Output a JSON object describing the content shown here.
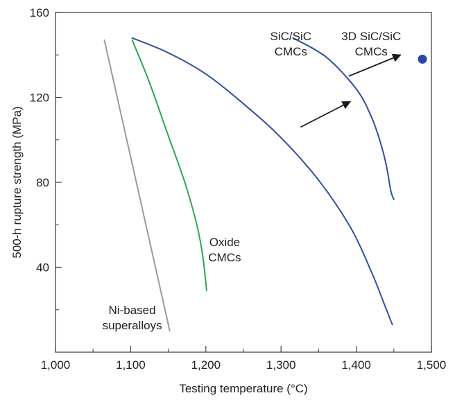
{
  "chart_data": {
    "type": "line",
    "title": "",
    "xlabel": "Testing temperature (°C)",
    "ylabel": "500-h rupture strength (MPa)",
    "xlim": [
      1000,
      1500
    ],
    "ylim": [
      0,
      160
    ],
    "x_ticks": [
      {
        "value": 1000,
        "label": "1,000"
      },
      {
        "value": 1100,
        "label": "1,100"
      },
      {
        "value": 1200,
        "label": "1,200"
      },
      {
        "value": 1300,
        "label": "1,300"
      },
      {
        "value": 1400,
        "label": "1,400"
      },
      {
        "value": 1500,
        "label": "1,500"
      }
    ],
    "x_minor_ticks": [
      1050,
      1150,
      1250,
      1350,
      1450
    ],
    "y_ticks": [
      {
        "value": 40,
        "label": "40"
      },
      {
        "value": 80,
        "label": "80"
      },
      {
        "value": 120,
        "label": "120"
      },
      {
        "value": 160,
        "label": "160"
      }
    ],
    "y_minor_ticks": [
      20,
      60,
      100,
      140
    ],
    "grid": false,
    "legend": "none",
    "series": [
      {
        "color": "#9a9a9a",
        "points": [
          [
            1065,
            147
          ],
          [
            1152,
            10
          ]
        ]
      },
      {
        "color": "#2aa84a",
        "points": [
          [
            1102,
            147
          ],
          [
            1125,
            127
          ],
          [
            1150,
            102
          ],
          [
            1172,
            80
          ],
          [
            1188,
            60
          ],
          [
            1196,
            45
          ],
          [
            1201,
            29
          ]
        ]
      },
      {
        "color": "#2f4fa0",
        "points": [
          [
            1102,
            148
          ],
          [
            1150,
            141
          ],
          [
            1200,
            131
          ],
          [
            1250,
            117
          ],
          [
            1300,
            101
          ],
          [
            1350,
            81
          ],
          [
            1392,
            59
          ],
          [
            1420,
            38
          ],
          [
            1438,
            22
          ],
          [
            1448,
            13
          ]
        ]
      },
      {
        "color": "#2f4fa0",
        "points": [
          [
            1316,
            148
          ],
          [
            1360,
            139
          ],
          [
            1400,
            124
          ],
          [
            1420,
            111
          ],
          [
            1432,
            99
          ],
          [
            1440,
            88
          ],
          [
            1446,
            76
          ],
          [
            1450,
            72
          ]
        ]
      }
    ],
    "points": [
      {
        "x": 1488,
        "y": 138,
        "color": "#2a47a8"
      }
    ],
    "arrows": [
      {
        "from": [
          1326,
          106
        ],
        "to": [
          1392,
          118
        ]
      },
      {
        "from": [
          1390,
          130
        ],
        "to": [
          1459,
          140
        ]
      }
    ],
    "annotations": [
      {
        "name": "ni-superalloys",
        "lines": [
          "Ni-based",
          "superalloys"
        ],
        "x": 1102,
        "y": 18
      },
      {
        "name": "oxide-cmcs",
        "lines": [
          "Oxide",
          "CMCs"
        ],
        "x": 1225,
        "y": 50
      },
      {
        "name": "sic-sic-cmcs",
        "lines": [
          "SiC/SiC",
          "CMCs"
        ],
        "x": 1313,
        "y": 147
      },
      {
        "name": "3d-sic-sic-cmcs",
        "lines": [
          "3D SiC/SiC",
          "CMCs"
        ],
        "x": 1420,
        "y": 147
      }
    ]
  }
}
